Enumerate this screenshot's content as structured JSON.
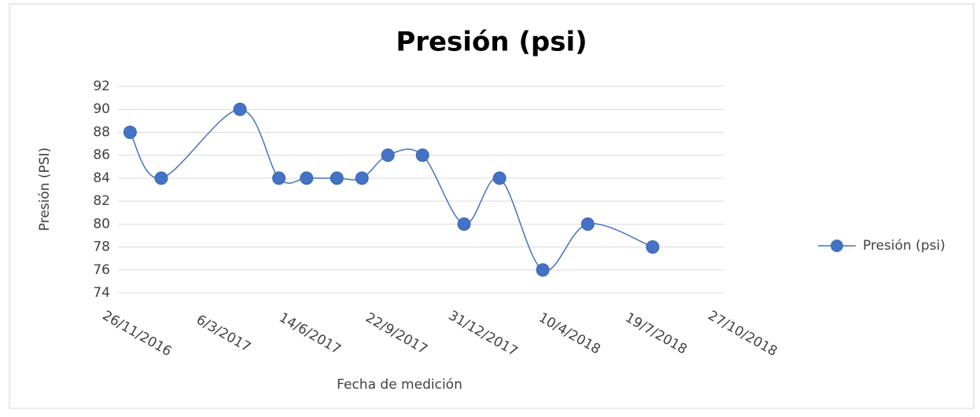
{
  "chart_data": {
    "type": "line",
    "title": "Presión (psi)",
    "x_label": "Fecha de medición",
    "y_label": "Presión (PSI)",
    "x": [
      "10/12/2016",
      "15/1/2017",
      "16/4/2017",
      "31/5/2017",
      "2/7/2017",
      "6/8/2017",
      "4/9/2017",
      "4/10/2017",
      "13/11/2017",
      "31/12/2017",
      "10/2/2018",
      "1/4/2018",
      "23/5/2018",
      "6/8/2018"
    ],
    "series": [
      {
        "name": "Presión (psi)",
        "color": "#4472c4",
        "values": [
          88,
          84,
          90,
          84,
          84,
          84,
          84,
          86,
          86,
          80,
          84,
          76,
          80,
          78
        ]
      }
    ],
    "xlim": [
      "26/11/2016",
      "27/10/2018"
    ],
    "xticks": [
      "26/11/2016",
      "6/3/2017",
      "14/6/2017",
      "22/9/2017",
      "31/12/2017",
      "10/4/2018",
      "19/7/2018",
      "27/10/2018"
    ],
    "ylim": [
      74,
      92
    ],
    "yticks": [
      74,
      76,
      78,
      80,
      82,
      84,
      86,
      88,
      90,
      92
    ],
    "grid": true,
    "smooth": true,
    "legend": "right"
  }
}
